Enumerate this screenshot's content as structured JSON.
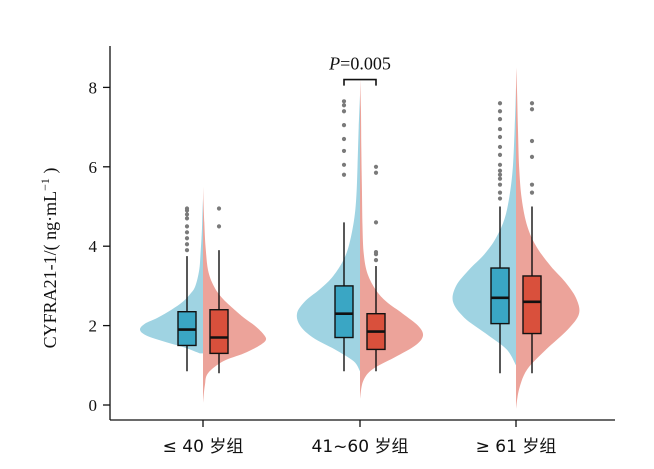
{
  "chart_data": {
    "type": "violin-box",
    "ylabel": "CYFRA21-1/( ng·mL−1 )",
    "ylim": [
      0,
      8.8
    ],
    "yticks": [
      0,
      2,
      4,
      6,
      8
    ],
    "categories": [
      "≤ 40 岁组",
      "41~60 岁组",
      "≥ 61 岁组"
    ],
    "colors": {
      "blue_violin": "#9fd3e2",
      "red_violin": "#eca39a",
      "blue_box": "#3aa6c4",
      "red_box": "#d9503c",
      "outlier": "#7a7a7a"
    },
    "annotation": {
      "category_index": 1,
      "label_italic": "P",
      "label_rest": "=0.005",
      "y": 8.6
    },
    "groups": [
      {
        "blue": {
          "box": {
            "min": 0.85,
            "q1": 1.5,
            "median": 1.9,
            "q3": 2.35,
            "max": 3.75
          },
          "outliers": [
            3.9,
            4.05,
            4.2,
            4.35,
            4.5,
            4.7,
            4.8,
            4.9,
            4.95
          ],
          "violin_range": [
            1.3,
            5.2
          ],
          "density": [
            [
              1.3,
              0.05
            ],
            [
              1.45,
              0.3
            ],
            [
              1.6,
              0.62
            ],
            [
              1.75,
              0.9
            ],
            [
              1.9,
              1.0
            ],
            [
              2.05,
              0.92
            ],
            [
              2.2,
              0.72
            ],
            [
              2.4,
              0.5
            ],
            [
              2.6,
              0.32
            ],
            [
              2.8,
              0.2
            ],
            [
              3.0,
              0.12
            ],
            [
              3.4,
              0.06
            ],
            [
              3.8,
              0.04
            ],
            [
              4.3,
              0.02
            ],
            [
              4.8,
              0.01
            ],
            [
              5.2,
              0.0
            ]
          ]
        },
        "red": {
          "box": {
            "min": 0.8,
            "q1": 1.3,
            "median": 1.7,
            "q3": 2.4,
            "max": 3.9
          },
          "outliers": [
            4.5,
            4.95
          ],
          "violin_range": [
            0.05,
            5.5
          ],
          "density": [
            [
              0.05,
              0.0
            ],
            [
              0.5,
              0.03
            ],
            [
              0.8,
              0.08
            ],
            [
              1.1,
              0.32
            ],
            [
              1.3,
              0.65
            ],
            [
              1.5,
              0.9
            ],
            [
              1.65,
              1.0
            ],
            [
              1.8,
              0.95
            ],
            [
              2.0,
              0.82
            ],
            [
              2.2,
              0.65
            ],
            [
              2.4,
              0.5
            ],
            [
              2.7,
              0.3
            ],
            [
              3.0,
              0.17
            ],
            [
              3.4,
              0.08
            ],
            [
              4.0,
              0.04
            ],
            [
              4.6,
              0.02
            ],
            [
              5.5,
              0.0
            ]
          ]
        }
      },
      {
        "blue": {
          "box": {
            "min": 0.85,
            "q1": 1.7,
            "median": 2.3,
            "q3": 3.0,
            "max": 4.6
          },
          "outliers": [
            5.8,
            6.05,
            6.4,
            6.7,
            7.05,
            7.4,
            7.55,
            7.65
          ],
          "violin_range": [
            0.85,
            7.8
          ],
          "density": [
            [
              0.85,
              0.0
            ],
            [
              1.1,
              0.1
            ],
            [
              1.4,
              0.4
            ],
            [
              1.7,
              0.75
            ],
            [
              2.0,
              0.95
            ],
            [
              2.3,
              1.0
            ],
            [
              2.6,
              0.88
            ],
            [
              2.9,
              0.65
            ],
            [
              3.2,
              0.45
            ],
            [
              3.6,
              0.28
            ],
            [
              4.0,
              0.18
            ],
            [
              4.6,
              0.1
            ],
            [
              5.2,
              0.06
            ],
            [
              6.0,
              0.04
            ],
            [
              7.0,
              0.02
            ],
            [
              7.8,
              0.0
            ]
          ]
        },
        "red": {
          "box": {
            "min": 0.85,
            "q1": 1.4,
            "median": 1.85,
            "q3": 2.3,
            "max": 3.5
          },
          "outliers": [
            3.65,
            3.8,
            3.85,
            4.6,
            5.85,
            6.0
          ],
          "violin_range": [
            0.15,
            8.2
          ],
          "density": [
            [
              0.15,
              0.0
            ],
            [
              0.6,
              0.05
            ],
            [
              0.9,
              0.2
            ],
            [
              1.2,
              0.55
            ],
            [
              1.5,
              0.88
            ],
            [
              1.75,
              1.0
            ],
            [
              2.0,
              0.92
            ],
            [
              2.3,
              0.68
            ],
            [
              2.6,
              0.42
            ],
            [
              2.9,
              0.25
            ],
            [
              3.3,
              0.12
            ],
            [
              3.8,
              0.06
            ],
            [
              4.5,
              0.04
            ],
            [
              5.5,
              0.03
            ],
            [
              6.5,
              0.02
            ],
            [
              7.5,
              0.015
            ],
            [
              8.2,
              0.0
            ]
          ]
        }
      },
      {
        "blue": {
          "box": {
            "min": 0.8,
            "q1": 2.05,
            "median": 2.7,
            "q3": 3.45,
            "max": 5.0
          },
          "outliers": [
            5.2,
            5.35,
            5.55,
            5.7,
            5.8,
            5.9,
            6.05,
            6.3,
            6.5,
            6.75,
            6.95,
            7.2,
            7.4,
            7.6
          ],
          "violin_range": [
            1.0,
            8.0
          ],
          "density": [
            [
              1.0,
              0.0
            ],
            [
              1.4,
              0.15
            ],
            [
              1.8,
              0.48
            ],
            [
              2.2,
              0.82
            ],
            [
              2.6,
              1.0
            ],
            [
              3.0,
              0.95
            ],
            [
              3.4,
              0.75
            ],
            [
              3.8,
              0.5
            ],
            [
              4.2,
              0.32
            ],
            [
              4.7,
              0.18
            ],
            [
              5.3,
              0.1
            ],
            [
              6.0,
              0.05
            ],
            [
              7.0,
              0.02
            ],
            [
              8.0,
              0.0
            ]
          ]
        },
        "red": {
          "box": {
            "min": 0.8,
            "q1": 1.8,
            "median": 2.6,
            "q3": 3.25,
            "max": 5.0
          },
          "outliers": [
            5.35,
            5.55,
            6.25,
            6.65,
            7.45,
            7.6
          ],
          "violin_range": [
            -0.1,
            8.5
          ],
          "density": [
            [
              -0.1,
              0.0
            ],
            [
              0.4,
              0.05
            ],
            [
              0.9,
              0.18
            ],
            [
              1.4,
              0.48
            ],
            [
              1.9,
              0.82
            ],
            [
              2.3,
              1.0
            ],
            [
              2.7,
              0.95
            ],
            [
              3.1,
              0.78
            ],
            [
              3.5,
              0.55
            ],
            [
              4.0,
              0.32
            ],
            [
              4.5,
              0.18
            ],
            [
              5.2,
              0.09
            ],
            [
              6.0,
              0.05
            ],
            [
              7.0,
              0.03
            ],
            [
              8.0,
              0.015
            ],
            [
              8.5,
              0.0
            ]
          ]
        }
      }
    ]
  }
}
